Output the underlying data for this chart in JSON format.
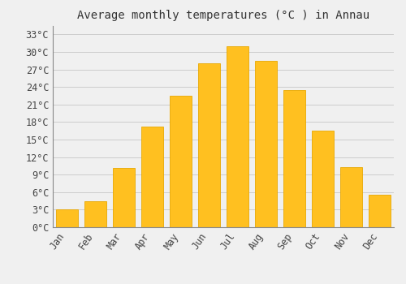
{
  "title": "Average monthly temperatures (°C ) in Annau",
  "months": [
    "Jan",
    "Feb",
    "Mar",
    "Apr",
    "May",
    "Jun",
    "Jul",
    "Aug",
    "Sep",
    "Oct",
    "Nov",
    "Dec"
  ],
  "temperatures": [
    3.0,
    4.5,
    10.2,
    17.2,
    22.5,
    28.0,
    31.0,
    28.5,
    23.5,
    16.5,
    10.3,
    5.5
  ],
  "bar_color": "#FFC020",
  "bar_edge_color": "#E8A800",
  "background_color": "#F0F0F0",
  "grid_color": "#CCCCCC",
  "yticks": [
    0,
    3,
    6,
    9,
    12,
    15,
    18,
    21,
    24,
    27,
    30,
    33
  ],
  "ylim": [
    0,
    34.5
  ],
  "title_fontsize": 10,
  "tick_fontsize": 8.5,
  "font_family": "monospace",
  "bar_width": 0.75
}
